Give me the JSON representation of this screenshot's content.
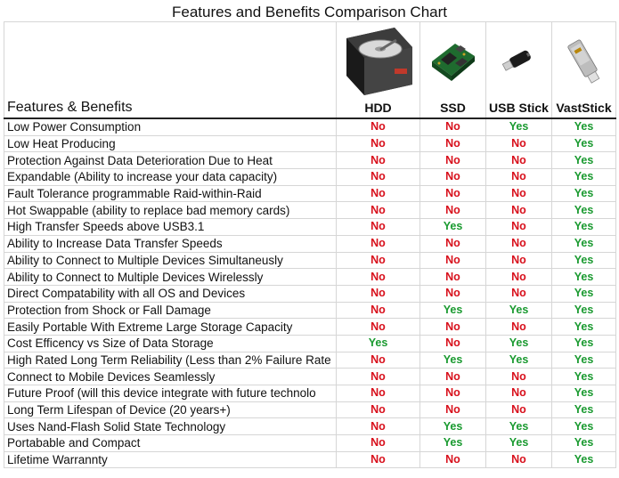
{
  "title": "Features and Benefits Comparison Chart",
  "header": {
    "features_label": "Features & Benefits",
    "columns": [
      "HDD",
      "SSD",
      "USB Stick",
      "VastStick"
    ]
  },
  "colors": {
    "no": "#d8101c",
    "yes": "#1a9a30"
  },
  "rows": [
    {
      "feature": "Low Power Consumption",
      "values": [
        "No",
        "No",
        "Yes",
        "Yes"
      ]
    },
    {
      "feature": "Low Heat Producing",
      "values": [
        "No",
        "No",
        "No",
        "Yes"
      ]
    },
    {
      "feature": "Protection Against Data Deterioration Due to Heat",
      "values": [
        "No",
        "No",
        "No",
        "Yes"
      ]
    },
    {
      "feature": "Expandable (Ability to increase your data capacity)",
      "values": [
        "No",
        "No",
        "No",
        "Yes"
      ]
    },
    {
      "feature": "Fault Tolerance programmable Raid-within-Raid",
      "values": [
        "No",
        "No",
        "No",
        "Yes"
      ]
    },
    {
      "feature": "Hot Swappable (ability to replace bad memory cards)",
      "values": [
        "No",
        "No",
        "No",
        "Yes"
      ]
    },
    {
      "feature": "High Transfer Speeds above USB3.1",
      "values": [
        "No",
        "Yes",
        "No",
        "Yes"
      ]
    },
    {
      "feature": "Ability to Increase Data Transfer Speeds",
      "values": [
        "No",
        "No",
        "No",
        "Yes"
      ]
    },
    {
      "feature": "Ability to Connect to Multiple Devices Simultaneusly",
      "values": [
        "No",
        "No",
        "No",
        "Yes"
      ]
    },
    {
      "feature": "Ability to Connect to Multiple Devices Wirelessly",
      "values": [
        "No",
        "No",
        "No",
        "Yes"
      ]
    },
    {
      "feature": "Direct Compatability with all OS and Devices",
      "values": [
        "No",
        "No",
        "No",
        "Yes"
      ]
    },
    {
      "feature": "Protection from Shock or Fall Damage",
      "values": [
        "No",
        "Yes",
        "Yes",
        "Yes"
      ]
    },
    {
      "feature": "Easily Portable With Extreme Large Storage Capacity",
      "values": [
        "No",
        "No",
        "No",
        "Yes"
      ]
    },
    {
      "feature": "Cost Efficency vs Size of Data Storage",
      "values": [
        "Yes",
        "No",
        "Yes",
        "Yes"
      ]
    },
    {
      "feature": "High Rated Long Term Reliability (Less than 2% Failure Rate",
      "values": [
        "No",
        "Yes",
        "Yes",
        "Yes"
      ]
    },
    {
      "feature": "Connect to Mobile Devices Seamlessly",
      "values": [
        "No",
        "No",
        "No",
        "Yes"
      ]
    },
    {
      "feature": "Future Proof (will this device integrate with future technolo",
      "values": [
        "No",
        "No",
        "No",
        "Yes"
      ]
    },
    {
      "feature": "Long Term Lifespan of Device (20 years+)",
      "values": [
        "No",
        "No",
        "No",
        "Yes"
      ]
    },
    {
      "feature": "Uses Nand-Flash Solid State Technology",
      "values": [
        "No",
        "Yes",
        "Yes",
        "Yes"
      ]
    },
    {
      "feature": "Portabable and Compact",
      "values": [
        "No",
        "Yes",
        "Yes",
        "Yes"
      ]
    },
    {
      "feature": "Lifetime Warrannty",
      "values": [
        "No",
        "No",
        "No",
        "Yes"
      ]
    }
  ]
}
